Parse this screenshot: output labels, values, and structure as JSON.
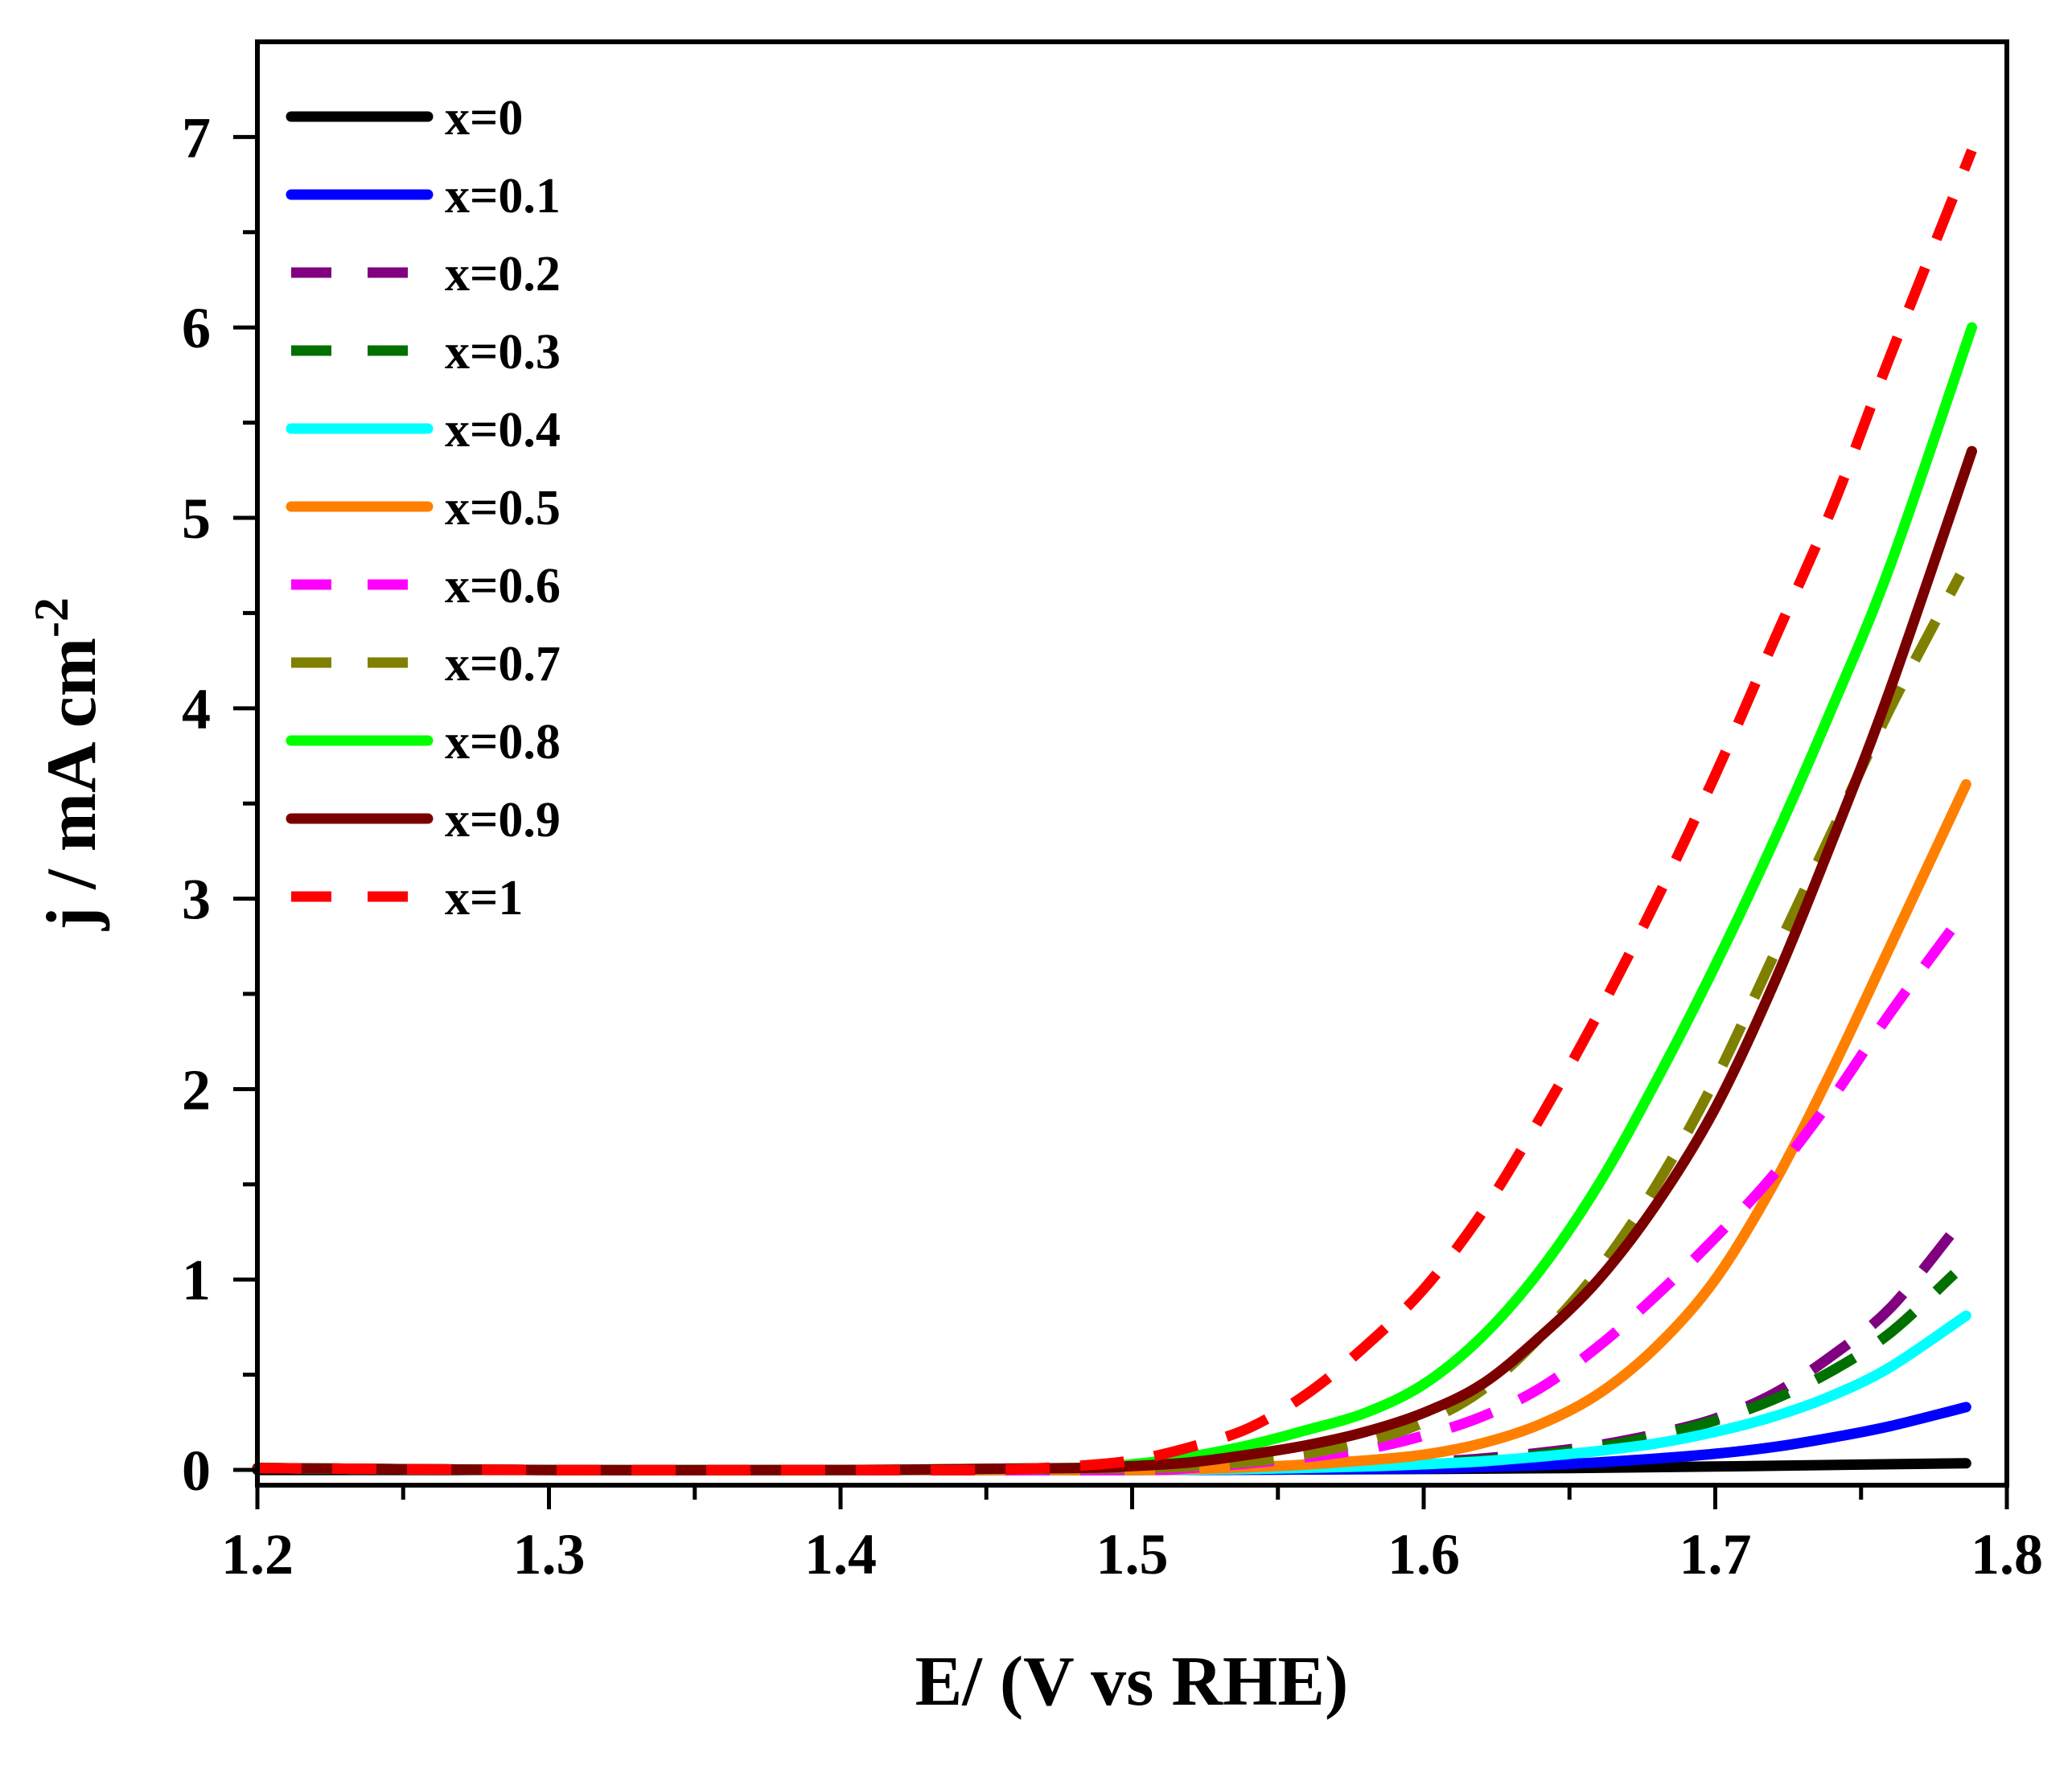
{
  "chart_data": {
    "type": "line",
    "title": "",
    "xlabel": "E/ (V vs RHE)",
    "ylabel": "j / mA cm",
    "ylabel_superscript": "-2",
    "xlim": [
      1.2,
      1.8
    ],
    "ylim": [
      -0.08,
      7.5
    ],
    "xticks": [
      1.2,
      1.3,
      1.4,
      1.5,
      1.6,
      1.7,
      1.8
    ],
    "xtick_labels": [
      "1.2",
      "1.3",
      "1.4",
      "1.5",
      "1.6",
      "1.7",
      "1.8"
    ],
    "yticks": [
      0,
      1,
      2,
      3,
      4,
      5,
      6,
      7
    ],
    "ytick_labels": [
      "0",
      "1",
      "2",
      "3",
      "4",
      "5",
      "6",
      "7"
    ],
    "grid": false,
    "legend_position": "top-left",
    "series": [
      {
        "name": "x=0",
        "color": "#000000",
        "dashed": false,
        "x": [
          1.2,
          1.3,
          1.4,
          1.5,
          1.55,
          1.6,
          1.65,
          1.7,
          1.75,
          1.786
        ],
        "y": [
          0,
          0,
          0,
          0,
          0.002,
          0.005,
          0.01,
          0.018,
          0.028,
          0.035
        ]
      },
      {
        "name": "x=0.1",
        "color": "#0000ff",
        "dashed": false,
        "x": [
          1.2,
          1.3,
          1.4,
          1.5,
          1.55,
          1.6,
          1.62,
          1.64,
          1.66,
          1.68,
          1.7,
          1.72,
          1.74,
          1.76,
          1.786
        ],
        "y": [
          0.01,
          0,
          0,
          0,
          0.002,
          0.008,
          0.015,
          0.025,
          0.04,
          0.06,
          0.085,
          0.12,
          0.17,
          0.23,
          0.33
        ]
      },
      {
        "name": "x=0.2",
        "color": "#800080",
        "dashed": true,
        "x": [
          1.2,
          1.3,
          1.4,
          1.5,
          1.54,
          1.58,
          1.6,
          1.62,
          1.64,
          1.66,
          1.68,
          1.7,
          1.72,
          1.74,
          1.76,
          1.782
        ],
        "y": [
          0.01,
          0,
          0,
          0,
          0.005,
          0.02,
          0.04,
          0.06,
          0.09,
          0.13,
          0.19,
          0.27,
          0.4,
          0.6,
          0.85,
          1.26
        ]
      },
      {
        "name": "x=0.3",
        "color": "#007000",
        "dashed": true,
        "x": [
          1.2,
          1.3,
          1.4,
          1.5,
          1.54,
          1.58,
          1.6,
          1.62,
          1.64,
          1.66,
          1.68,
          1.7,
          1.72,
          1.74,
          1.76,
          1.782
        ],
        "y": [
          0.01,
          0,
          0,
          0,
          0.005,
          0.02,
          0.035,
          0.05,
          0.08,
          0.12,
          0.18,
          0.26,
          0.37,
          0.52,
          0.72,
          1.03
        ]
      },
      {
        "name": "x=0.4",
        "color": "#00ffff",
        "dashed": false,
        "x": [
          1.2,
          1.3,
          1.4,
          1.5,
          1.54,
          1.58,
          1.6,
          1.62,
          1.64,
          1.66,
          1.68,
          1.7,
          1.72,
          1.74,
          1.76,
          1.786
        ],
        "y": [
          0.01,
          0,
          0,
          0,
          0.005,
          0.018,
          0.03,
          0.045,
          0.07,
          0.1,
          0.14,
          0.2,
          0.28,
          0.39,
          0.54,
          0.81
        ]
      },
      {
        "name": "x=0.5",
        "color": "#ff8000",
        "dashed": false,
        "x": [
          1.2,
          1.3,
          1.4,
          1.5,
          1.52,
          1.55,
          1.58,
          1.6,
          1.62,
          1.64,
          1.66,
          1.68,
          1.7,
          1.72,
          1.74,
          1.76,
          1.786
        ],
        "y": [
          0.01,
          0,
          0,
          0,
          0.005,
          0.02,
          0.05,
          0.08,
          0.14,
          0.24,
          0.4,
          0.65,
          1.0,
          1.5,
          2.1,
          2.75,
          3.6
        ]
      },
      {
        "name": "x=0.6",
        "color": "#ff00ff",
        "dashed": true,
        "x": [
          1.2,
          1.3,
          1.4,
          1.5,
          1.52,
          1.55,
          1.58,
          1.6,
          1.62,
          1.64,
          1.66,
          1.68,
          1.7,
          1.72,
          1.74,
          1.76,
          1.784
        ],
        "y": [
          0.01,
          0,
          0,
          0,
          0.01,
          0.05,
          0.11,
          0.18,
          0.28,
          0.43,
          0.65,
          0.92,
          1.22,
          1.55,
          1.95,
          2.4,
          2.9
        ]
      },
      {
        "name": "x=0.7",
        "color": "#808000",
        "dashed": true,
        "x": [
          1.2,
          1.3,
          1.4,
          1.5,
          1.52,
          1.55,
          1.58,
          1.6,
          1.62,
          1.64,
          1.66,
          1.68,
          1.7,
          1.72,
          1.74,
          1.76,
          1.784
        ],
        "y": [
          0.01,
          0,
          0,
          0.01,
          0.02,
          0.06,
          0.15,
          0.25,
          0.42,
          0.7,
          1.05,
          1.5,
          2.05,
          2.7,
          3.35,
          4.0,
          4.7
        ]
      },
      {
        "name": "x=0.8",
        "color": "#00ff00",
        "dashed": false,
        "x": [
          1.2,
          1.3,
          1.4,
          1.48,
          1.5,
          1.52,
          1.54,
          1.56,
          1.58,
          1.6,
          1.62,
          1.64,
          1.66,
          1.68,
          1.7,
          1.72,
          1.74,
          1.76,
          1.788
        ],
        "y": [
          0.01,
          0,
          0,
          0.01,
          0.03,
          0.07,
          0.13,
          0.21,
          0.3,
          0.45,
          0.7,
          1.05,
          1.5,
          2.05,
          2.65,
          3.3,
          4.0,
          4.75,
          6.0
        ]
      },
      {
        "name": "x=0.9",
        "color": "#7a0000",
        "dashed": false,
        "x": [
          1.2,
          1.3,
          1.4,
          1.48,
          1.5,
          1.52,
          1.54,
          1.56,
          1.58,
          1.6,
          1.62,
          1.64,
          1.66,
          1.68,
          1.7,
          1.72,
          1.74,
          1.76,
          1.788
        ],
        "y": [
          0.01,
          0,
          0,
          0.01,
          0.02,
          0.04,
          0.08,
          0.13,
          0.2,
          0.3,
          0.45,
          0.7,
          1.0,
          1.4,
          1.9,
          2.55,
          3.3,
          4.1,
          5.35
        ]
      },
      {
        "name": "x=1",
        "color": "#ff0000",
        "dashed": true,
        "x": [
          1.2,
          1.3,
          1.4,
          1.45,
          1.48,
          1.5,
          1.52,
          1.54,
          1.56,
          1.58,
          1.6,
          1.62,
          1.64,
          1.66,
          1.68,
          1.7,
          1.72,
          1.74,
          1.76,
          1.788
        ],
        "y": [
          0.01,
          0,
          0,
          0,
          0.02,
          0.05,
          0.12,
          0.22,
          0.4,
          0.65,
          0.95,
          1.35,
          1.85,
          2.4,
          3.0,
          3.65,
          4.35,
          5.05,
          5.85,
          6.93
        ]
      }
    ]
  }
}
